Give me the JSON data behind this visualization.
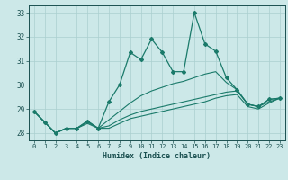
{
  "title": "",
  "xlabel": "Humidex (Indice chaleur)",
  "x": [
    0,
    1,
    2,
    3,
    4,
    5,
    6,
    7,
    8,
    9,
    10,
    11,
    12,
    13,
    14,
    15,
    16,
    17,
    18,
    19,
    20,
    21,
    22,
    23
  ],
  "y_main": [
    28.9,
    28.45,
    28.0,
    28.2,
    28.2,
    28.5,
    28.2,
    29.3,
    30.0,
    31.35,
    31.05,
    31.9,
    31.35,
    30.55,
    30.55,
    33.0,
    31.7,
    31.4,
    30.3,
    29.8,
    29.2,
    29.1,
    29.4,
    29.45
  ],
  "y_upper": [
    28.9,
    28.45,
    28.0,
    28.2,
    28.2,
    28.5,
    28.2,
    28.55,
    28.9,
    29.25,
    29.55,
    29.75,
    29.9,
    30.05,
    30.15,
    30.3,
    30.45,
    30.55,
    30.1,
    29.8,
    29.2,
    29.1,
    29.4,
    29.45
  ],
  "y_mid": [
    28.9,
    28.45,
    28.0,
    28.2,
    28.2,
    28.45,
    28.2,
    28.3,
    28.55,
    28.75,
    28.9,
    29.0,
    29.1,
    29.2,
    29.3,
    29.4,
    29.5,
    29.6,
    29.7,
    29.75,
    29.2,
    29.1,
    29.3,
    29.45
  ],
  "y_low": [
    28.9,
    28.45,
    28.0,
    28.2,
    28.2,
    28.4,
    28.2,
    28.2,
    28.4,
    28.6,
    28.7,
    28.8,
    28.9,
    29.0,
    29.1,
    29.2,
    29.3,
    29.45,
    29.55,
    29.6,
    29.1,
    29.0,
    29.25,
    29.45
  ],
  "ylim": [
    27.7,
    33.3
  ],
  "yticks": [
    28,
    29,
    30,
    31,
    32,
    33
  ],
  "bg_color": "#cce8e8",
  "grid_color": "#aacfcf",
  "line_color": "#1a7a6a",
  "font_color": "#1a5050"
}
